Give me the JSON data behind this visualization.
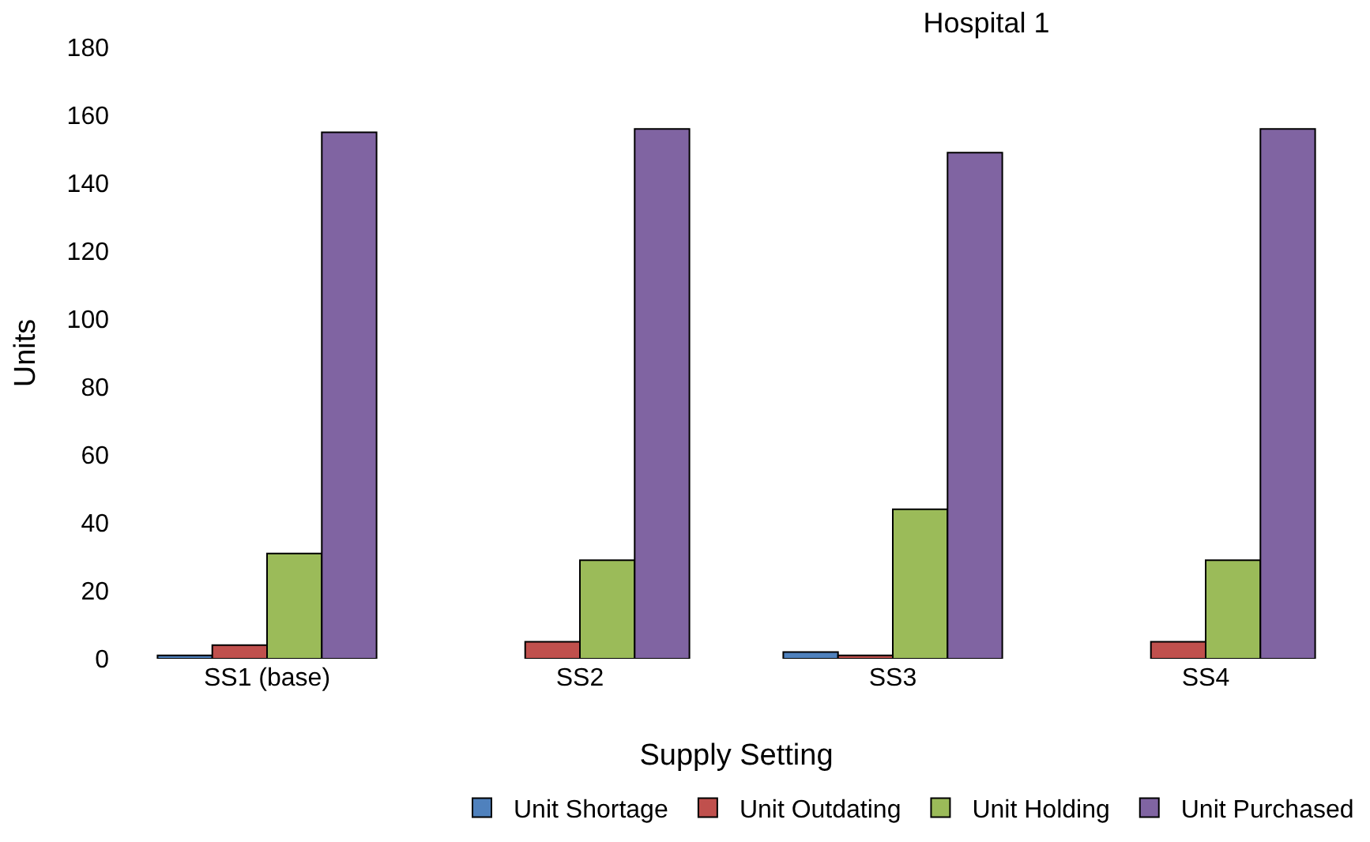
{
  "chart_data": {
    "type": "bar",
    "title": "Hospital 1",
    "xlabel": "Supply Setting",
    "ylabel": "Units",
    "categories": [
      "SS1 (base)",
      "SS2",
      "SS3",
      "SS4"
    ],
    "series": [
      {
        "name": "Unit Shortage",
        "color": "#4f81bd",
        "values": [
          1,
          0,
          2,
          0
        ]
      },
      {
        "name": "Unit Outdating",
        "color": "#c0504d",
        "values": [
          4,
          5,
          1,
          5
        ]
      },
      {
        "name": "Unit Holding",
        "color": "#9bbb59",
        "values": [
          31,
          29,
          44,
          29
        ]
      },
      {
        "name": "Unit Purchased",
        "color": "#8064a2",
        "values": [
          155,
          156,
          149,
          156
        ]
      }
    ],
    "ylim": [
      0,
      180
    ],
    "yticks": [
      0,
      20,
      40,
      60,
      80,
      100,
      120,
      140,
      160,
      180
    ],
    "grid": false,
    "legend": "bottom"
  }
}
